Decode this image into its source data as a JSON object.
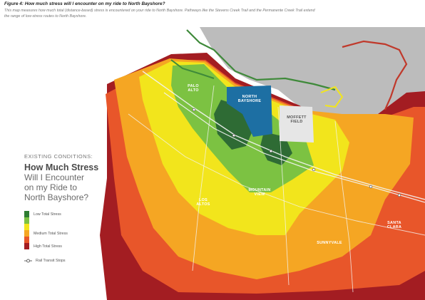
{
  "caption": {
    "title": "Figure 4: How much stress will I encounter on my ride to North Bayshore?",
    "description": "This map measures how much total (distance-based) stress is encountered on your ride to North Bayshore. Pathways like the Stevens Creek Trail and the Permanente Creek Trail extend the range of low-stress routes to North Bayshore."
  },
  "legend": {
    "kicker": "EXISTING CONDITIONS:",
    "heading": "How Much Stress",
    "subheading_lines": [
      "Will I Encounter",
      "on my Ride to",
      "North Bayshore?"
    ],
    "items": [
      {
        "label": "Low Total Stress",
        "color": "#2e7d32"
      },
      {
        "label": "",
        "color": "#7cc242"
      },
      {
        "label": "",
        "color": "#f2e51c"
      },
      {
        "label": "Medium Total Stress",
        "color": "#f5a623"
      },
      {
        "label": "",
        "color": "#e8562a"
      },
      {
        "label": "High Total Stress",
        "color": "#a31d22"
      }
    ],
    "transit_label": "Rail Transit Stops"
  },
  "places": {
    "palo_alto": "PALO\nALTO",
    "north_bayshore": "NORTH\nBAYSHORE",
    "moffett_field": "MOFFETT\nFIELD",
    "mountain_view": "MOUNTAIN\nVIEW",
    "los_altos": "LOS\nALTOS",
    "sunnyvale": "SUNNYVALE",
    "santa_clara": "SANTA\nCLARA"
  },
  "colors": {
    "bay": "#bcbcbc",
    "low_dark": "#2e6b34",
    "low": "#7cc242",
    "mid_yellow": "#f2e51c",
    "medium": "#f5a623",
    "high_orange": "#e8562a",
    "high": "#a31d22",
    "north_bayshore": "#1d6fa3",
    "moffett": "#e6e6e6",
    "trail_green": "#3f8a3a",
    "trail_red": "#c0392b",
    "trail_yellow": "#f2e51c"
  }
}
